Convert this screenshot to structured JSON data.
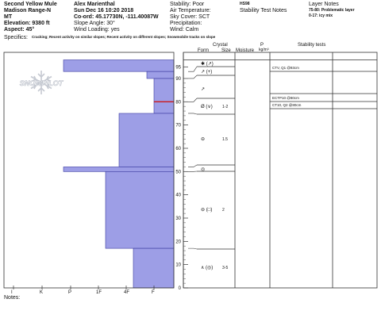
{
  "header": {
    "col1": [
      "Second Yellow Mule",
      "Madison Range-N",
      "MT",
      "Elevation: 9380 ft",
      "Aspect: 45°"
    ],
    "col2": [
      "Alex Marienthal",
      "Sun Dec 16 10:20 2018",
      "Co-ord: 45.17730N, -111.40087W",
      "Slope Angle: 30°",
      "Wind Loading: yes"
    ],
    "col3": [
      "Stability: Poor",
      "Air Temperature:",
      "Sky Cover: SCT",
      "Precipitation:",
      "Wind: Calm"
    ],
    "hs": "HS98",
    "stability_test_notes_label": "Stability Test Notes",
    "layer_notes_label": "Layer Notes",
    "layer_notes": [
      "75-80: Problematic layer",
      "0-17: icy mix"
    ],
    "specifics_label": "Specifics:",
    "specifics": "Cracking; Recent activity on similar slopes; Recent activity on different slopes; Snowmobile tracks on slope"
  },
  "columns": {
    "crystal": "Crystal",
    "form": "Form",
    "size": "Size",
    "moisture": "Moisture",
    "p": "P",
    "density": "kg/m³",
    "stability_tests": "Stability tests"
  },
  "watermark": "SNOWPILOT",
  "hardness_ticks": [
    "I",
    "K",
    "P",
    "1F",
    "4F",
    "F"
  ],
  "height_ticks": [
    "95",
    "90",
    "80",
    "70",
    "60",
    "50",
    "40",
    "30",
    "20",
    "10",
    "0"
  ],
  "layers": [
    {
      "form": "✱ (↗)",
      "size": ""
    },
    {
      "form": "↗ (+)",
      "size": ""
    },
    {
      "form": "↗",
      "size": ""
    },
    {
      "form": "Ø (∨)",
      "size": "1-2"
    },
    {
      "form": "⊖",
      "size": "1.5"
    },
    {
      "form": "◎",
      "size": ""
    },
    {
      "form": "⊖ (□)",
      "size": "2"
    },
    {
      "form": "∧ (◎)",
      "size": "3-5"
    }
  ],
  "stability_tests": [
    "CTV, Q1 @93cm",
    "ECTP10 @80cm",
    "CT10, Q2 @80cm"
  ],
  "notes_label": "Notes:",
  "colors": {
    "profile_fill": "#9d9ee6",
    "profile_stroke": "#3a3aa0",
    "weak_layer": "#cc1a1a",
    "watermark": "#c6cad2"
  },
  "chart_data": {
    "type": "bar",
    "title": "",
    "xlabel": "",
    "ylabel": "",
    "ylim": [
      0,
      98
    ],
    "x_categories": [
      "I",
      "K",
      "P",
      "1F",
      "4F",
      "F"
    ],
    "layers_cm": [
      {
        "bottom": 93,
        "top": 98,
        "hardness": "P+"
      },
      {
        "bottom": 90,
        "top": 93,
        "hardness": "F+"
      },
      {
        "bottom": 80,
        "top": 90,
        "hardness": "F"
      },
      {
        "bottom": 75,
        "top": 80,
        "hardness": "F"
      },
      {
        "bottom": 52,
        "top": 75,
        "hardness": "4F+"
      },
      {
        "bottom": 50,
        "top": 52,
        "hardness": "P+"
      },
      {
        "bottom": 17,
        "top": 50,
        "hardness": "1F-"
      },
      {
        "bottom": 0,
        "top": 17,
        "hardness": "4F-"
      }
    ],
    "weak_layer_cm": 80
  }
}
